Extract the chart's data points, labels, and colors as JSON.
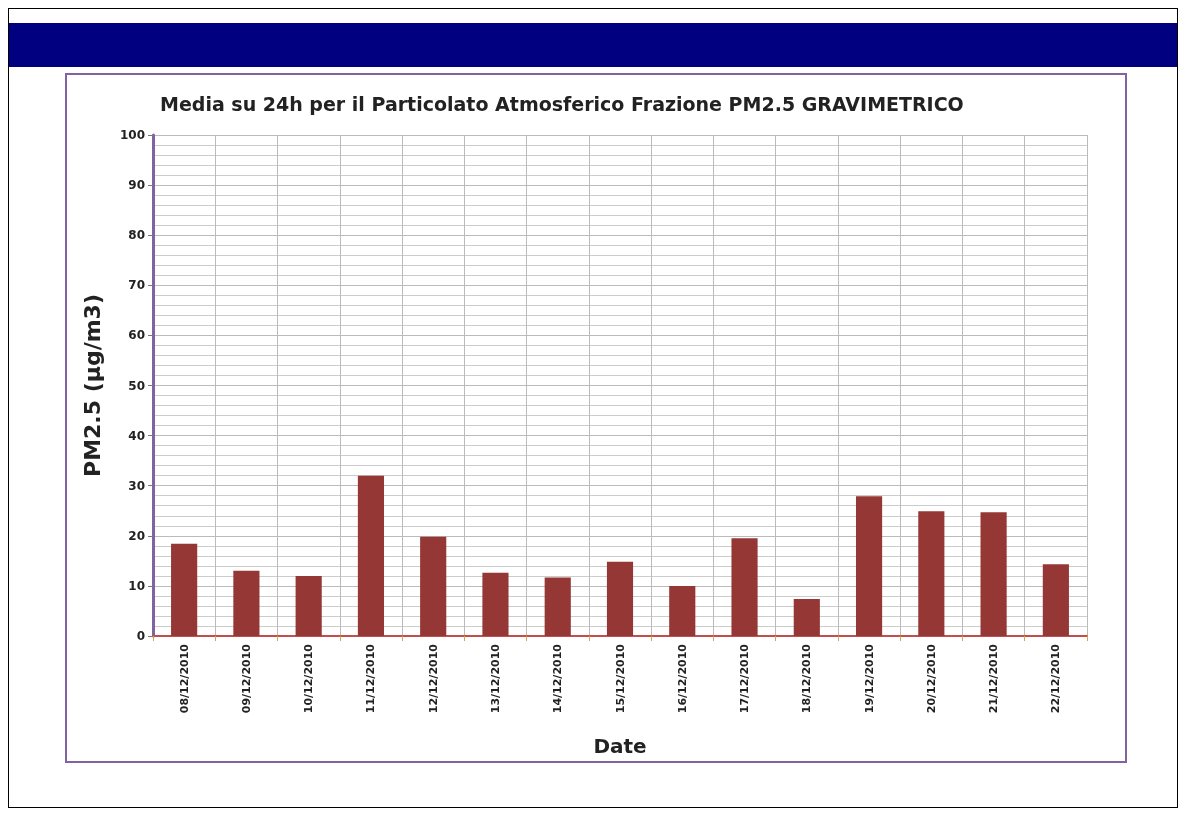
{
  "chart_data": {
    "type": "bar",
    "title": "Media su 24h per il Particolato Atmosferico Frazione PM2.5 GRAVIMETRICO",
    "xlabel": "Date",
    "ylabel": "PM2.5 (µg/m3)",
    "categories": [
      "08/12/2010",
      "09/12/2010",
      "10/12/2010",
      "11/12/2010",
      "12/12/2010",
      "13/12/2010",
      "14/12/2010",
      "15/12/2010",
      "16/12/2010",
      "17/12/2010",
      "18/12/2010",
      "19/12/2010",
      "20/12/2010",
      "21/12/2010",
      "22/12/2010"
    ],
    "values": [
      18.4,
      13,
      12,
      32,
      19.8,
      12.6,
      11.7,
      14.8,
      10,
      19.5,
      7.4,
      27.9,
      24.9,
      24.7,
      14.3
    ],
    "color": "#953735",
    "ylim": [
      0,
      100
    ],
    "yticks": [
      0,
      10,
      20,
      30,
      40,
      50,
      60,
      70,
      80,
      90,
      100
    ],
    "grid": true
  }
}
